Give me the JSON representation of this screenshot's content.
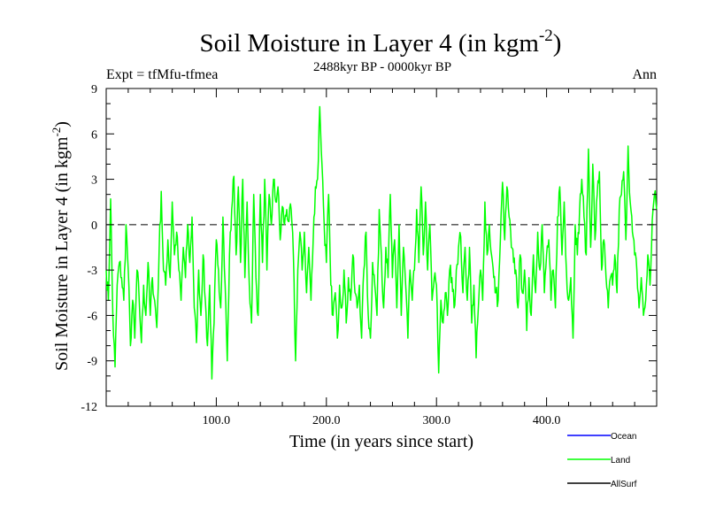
{
  "chart_data": {
    "type": "line",
    "title": "Soil Moisture in Layer 4 (in kgm",
    "title_sup": "-2",
    "title_close": ")",
    "subtitle": "2488kyr BP - 0000kyr BP",
    "left_label": "Expt = tfMfu-tfmea",
    "right_label": "Ann",
    "xlabel": "Time (in years since start)",
    "ylabel": "Soil Moisture in Layer 4 (in kgm",
    "ylabel_sup": "-2",
    "ylabel_close": ")",
    "xlim": [
      0,
      500
    ],
    "ylim": [
      -12,
      9
    ],
    "x_ticks": [
      100,
      200,
      300,
      400
    ],
    "x_tick_labels": [
      "100.0",
      "200.0",
      "300.0",
      "400.0"
    ],
    "y_ticks": [
      -12,
      -9,
      -6,
      -3,
      0,
      3,
      6,
      9
    ],
    "y_tick_labels": [
      "-12",
      "-9",
      "-6",
      "-3",
      "0",
      "3",
      "6",
      "9"
    ],
    "reference_line": 0,
    "legend": [
      {
        "name": "Ocean",
        "color": "#0000ff"
      },
      {
        "name": "Land",
        "color": "#00ff00"
      },
      {
        "name": "AllSurf",
        "color": "#000000"
      }
    ],
    "series": [
      {
        "name": "Land",
        "color": "#00ff00",
        "anchors": [
          [
            0,
            -3
          ],
          [
            2,
            -5
          ],
          [
            4,
            1.7
          ],
          [
            6,
            -6
          ],
          [
            8,
            -9.4
          ],
          [
            10,
            -4
          ],
          [
            12,
            -2.5
          ],
          [
            14,
            -3.5
          ],
          [
            16,
            -5
          ],
          [
            18,
            0
          ],
          [
            20,
            -3
          ],
          [
            22,
            -8
          ],
          [
            24,
            -5
          ],
          [
            26,
            -7.5
          ],
          [
            28,
            -3
          ],
          [
            30,
            -5
          ],
          [
            32,
            -7.8
          ],
          [
            34,
            -4
          ],
          [
            36,
            -6
          ],
          [
            38,
            -2.5
          ],
          [
            40,
            -6
          ],
          [
            42,
            -3.5
          ],
          [
            44,
            -5
          ],
          [
            46,
            -6.8
          ],
          [
            48,
            -2
          ],
          [
            50,
            2.2
          ],
          [
            52,
            -3
          ],
          [
            54,
            -4
          ],
          [
            56,
            -1
          ],
          [
            58,
            -3.5
          ],
          [
            60,
            1.5
          ],
          [
            62,
            -2
          ],
          [
            64,
            -0.5
          ],
          [
            66,
            -3
          ],
          [
            68,
            -5
          ],
          [
            70,
            -1.5
          ],
          [
            72,
            -3.5
          ],
          [
            74,
            0
          ],
          [
            76,
            -2.5
          ],
          [
            78,
            0.5
          ],
          [
            80,
            -5.5
          ],
          [
            82,
            -7.8
          ],
          [
            84,
            -3
          ],
          [
            86,
            -6
          ],
          [
            88,
            -2
          ],
          [
            90,
            -5
          ],
          [
            92,
            -8
          ],
          [
            94,
            -4
          ],
          [
            96,
            -10.2
          ],
          [
            98,
            -6.5
          ],
          [
            100,
            -1
          ],
          [
            102,
            -3
          ],
          [
            104,
            -5.5
          ],
          [
            106,
            0.5
          ],
          [
            108,
            -4
          ],
          [
            110,
            -9
          ],
          [
            112,
            -2
          ],
          [
            114,
            1
          ],
          [
            116,
            3.2
          ],
          [
            118,
            -2
          ],
          [
            120,
            2.5
          ],
          [
            122,
            -2.5
          ],
          [
            124,
            3
          ],
          [
            126,
            -3.5
          ],
          [
            128,
            1.5
          ],
          [
            130,
            -4
          ],
          [
            132,
            -6.5
          ],
          [
            134,
            2
          ],
          [
            136,
            -3.5
          ],
          [
            138,
            -6
          ],
          [
            140,
            2
          ],
          [
            142,
            -2.5
          ],
          [
            144,
            3
          ],
          [
            146,
            -3
          ],
          [
            148,
            2
          ],
          [
            150,
            0
          ],
          [
            152,
            3
          ],
          [
            154,
            1.5
          ],
          [
            156,
            2.5
          ],
          [
            158,
            -1
          ],
          [
            160,
            1.2
          ],
          [
            162,
            0
          ],
          [
            164,
            1
          ],
          [
            166,
            0.2
          ],
          [
            168,
            1
          ],
          [
            170,
            -2
          ],
          [
            172,
            -9
          ],
          [
            174,
            -3
          ],
          [
            176,
            -0.5
          ],
          [
            178,
            -3
          ],
          [
            180,
            -0.5
          ],
          [
            182,
            -4.5
          ],
          [
            184,
            -1.5
          ],
          [
            186,
            -5
          ],
          [
            188,
            -1
          ],
          [
            190,
            2.5
          ],
          [
            192,
            3
          ],
          [
            194,
            7.8
          ],
          [
            196,
            4
          ],
          [
            198,
            0
          ],
          [
            200,
            -2.5
          ],
          [
            202,
            2
          ],
          [
            204,
            -4
          ],
          [
            206,
            -6
          ],
          [
            208,
            -4.5
          ],
          [
            210,
            -7.5
          ],
          [
            212,
            -4
          ],
          [
            214,
            -5.5
          ],
          [
            216,
            -3
          ],
          [
            218,
            -6.5
          ],
          [
            220,
            -3.5
          ],
          [
            222,
            -5
          ],
          [
            224,
            -2
          ],
          [
            226,
            -4.5
          ],
          [
            228,
            -5.5
          ],
          [
            230,
            -4
          ],
          [
            232,
            -7.5
          ],
          [
            234,
            -3
          ],
          [
            236,
            -0.5
          ],
          [
            238,
            -6
          ],
          [
            240,
            -7.5
          ],
          [
            242,
            -2.5
          ],
          [
            244,
            -4
          ],
          [
            246,
            -6
          ],
          [
            248,
            1
          ],
          [
            250,
            -2
          ],
          [
            252,
            -5.5
          ],
          [
            254,
            -1.5
          ],
          [
            256,
            -3.5
          ],
          [
            258,
            2
          ],
          [
            260,
            -3.5
          ],
          [
            262,
            -1
          ],
          [
            264,
            -5.5
          ],
          [
            266,
            0
          ],
          [
            268,
            -6
          ],
          [
            270,
            -1.5
          ],
          [
            272,
            -4
          ],
          [
            274,
            -7.5
          ],
          [
            276,
            -3
          ],
          [
            278,
            -5
          ],
          [
            280,
            -3
          ],
          [
            282,
            1
          ],
          [
            284,
            -2.5
          ],
          [
            286,
            2.5
          ],
          [
            288,
            -2
          ],
          [
            290,
            1.5
          ],
          [
            292,
            -3
          ],
          [
            294,
            0
          ],
          [
            296,
            -5
          ],
          [
            298,
            -3.5
          ],
          [
            300,
            -4
          ],
          [
            302,
            -9.8
          ],
          [
            304,
            -5
          ],
          [
            306,
            -6.5
          ],
          [
            308,
            -4.5
          ],
          [
            310,
            -6
          ],
          [
            312,
            -3
          ],
          [
            314,
            -3.5
          ],
          [
            316,
            -5.5
          ],
          [
            318,
            -3
          ],
          [
            320,
            -1.5
          ],
          [
            322,
            -0.8
          ],
          [
            324,
            -4.5
          ],
          [
            326,
            -1.5
          ],
          [
            328,
            -5
          ],
          [
            330,
            -1.5
          ],
          [
            332,
            -6.5
          ],
          [
            334,
            -4
          ],
          [
            336,
            -8.8
          ],
          [
            338,
            -5.5
          ],
          [
            340,
            -3
          ],
          [
            342,
            -5
          ],
          [
            344,
            1.5
          ],
          [
            346,
            -2
          ],
          [
            348,
            0
          ],
          [
            350,
            -2
          ],
          [
            352,
            -3.5
          ],
          [
            354,
            -4.5
          ],
          [
            356,
            -5
          ],
          [
            358,
            -1
          ],
          [
            360,
            2.8
          ],
          [
            362,
            -1
          ],
          [
            364,
            2.5
          ],
          [
            366,
            0.5
          ],
          [
            368,
            -1.5
          ],
          [
            370,
            -2.5
          ],
          [
            372,
            -3
          ],
          [
            374,
            -5.5
          ],
          [
            376,
            -2
          ],
          [
            378,
            -4.5
          ],
          [
            380,
            -3
          ],
          [
            382,
            -7
          ],
          [
            384,
            -3.5
          ],
          [
            386,
            -6
          ],
          [
            388,
            -2
          ],
          [
            390,
            -4.5
          ],
          [
            392,
            -0.5
          ],
          [
            394,
            -3
          ],
          [
            396,
            0
          ],
          [
            398,
            -4.5
          ],
          [
            400,
            -2
          ],
          [
            402,
            -1
          ],
          [
            404,
            -5
          ],
          [
            406,
            -3
          ],
          [
            408,
            -5.5
          ],
          [
            410,
            0.5
          ],
          [
            412,
            2.5
          ],
          [
            414,
            -2
          ],
          [
            416,
            1.5
          ],
          [
            418,
            -3
          ],
          [
            420,
            -5
          ],
          [
            422,
            -3.5
          ],
          [
            424,
            -7.5
          ],
          [
            426,
            0
          ],
          [
            428,
            -2
          ],
          [
            430,
            1
          ],
          [
            432,
            3
          ],
          [
            434,
            0.5
          ],
          [
            436,
            -2
          ],
          [
            438,
            5
          ],
          [
            440,
            -1.5
          ],
          [
            442,
            4
          ],
          [
            444,
            -1
          ],
          [
            446,
            2
          ],
          [
            448,
            3.5
          ],
          [
            450,
            -3
          ],
          [
            452,
            -1
          ],
          [
            454,
            -3.5
          ],
          [
            456,
            -5.5
          ],
          [
            458,
            -3.5
          ],
          [
            460,
            -4
          ],
          [
            462,
            -2
          ],
          [
            464,
            -4.5
          ],
          [
            466,
            1
          ],
          [
            468,
            2
          ],
          [
            470,
            3.5
          ],
          [
            472,
            -1
          ],
          [
            474,
            5.2
          ],
          [
            476,
            1.5
          ],
          [
            478,
            -0.5
          ],
          [
            480,
            -2
          ],
          [
            482,
            -3
          ],
          [
            484,
            -5.5
          ],
          [
            486,
            -3.5
          ],
          [
            488,
            -6
          ],
          [
            490,
            -5
          ],
          [
            492,
            -2
          ],
          [
            494,
            -4
          ],
          [
            496,
            0.3
          ],
          [
            498,
            2
          ],
          [
            500,
            1
          ]
        ]
      }
    ]
  }
}
